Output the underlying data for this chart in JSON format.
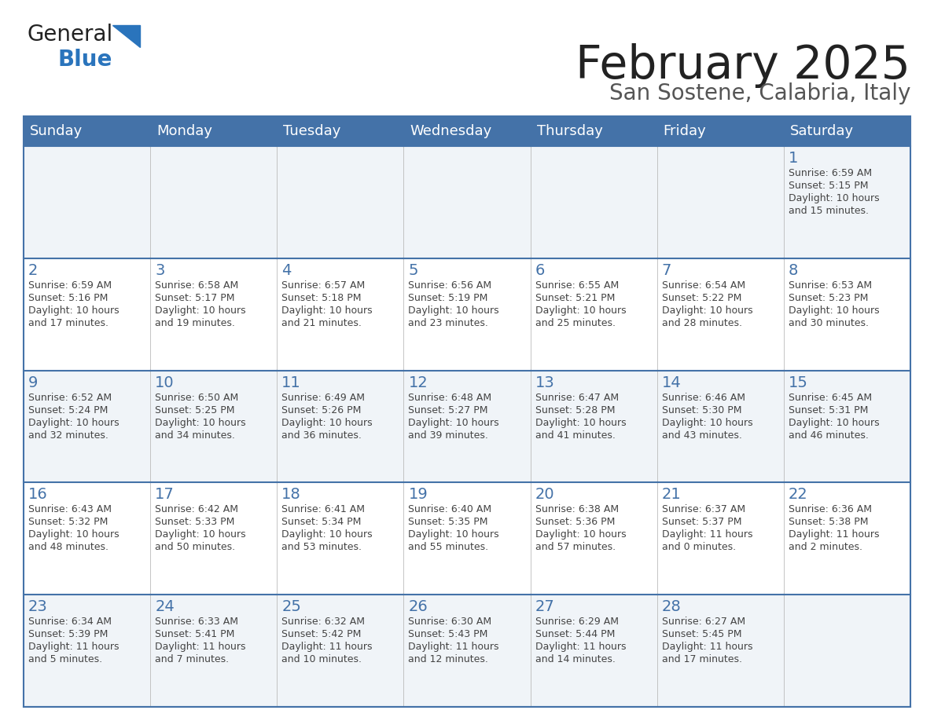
{
  "title": "February 2025",
  "subtitle": "San Sostene, Calabria, Italy",
  "days_of_week": [
    "Sunday",
    "Monday",
    "Tuesday",
    "Wednesday",
    "Thursday",
    "Friday",
    "Saturday"
  ],
  "header_bg_color": "#4472a8",
  "header_text_color": "#ffffff",
  "cell_bg_color": "#ffffff",
  "cell_alt_bg_color": "#f0f4f8",
  "cell_border_color": "#4472a8",
  "day_number_color": "#4472a8",
  "info_text_color": "#444444",
  "title_color": "#222222",
  "subtitle_color": "#555555",
  "logo_general_color": "#222222",
  "logo_blue_color": "#2a74bc",
  "weeks": [
    [
      {
        "day": "",
        "info": ""
      },
      {
        "day": "",
        "info": ""
      },
      {
        "day": "",
        "info": ""
      },
      {
        "day": "",
        "info": ""
      },
      {
        "day": "",
        "info": ""
      },
      {
        "day": "",
        "info": ""
      },
      {
        "day": "1",
        "info": "Sunrise: 6:59 AM\nSunset: 5:15 PM\nDaylight: 10 hours\nand 15 minutes."
      }
    ],
    [
      {
        "day": "2",
        "info": "Sunrise: 6:59 AM\nSunset: 5:16 PM\nDaylight: 10 hours\nand 17 minutes."
      },
      {
        "day": "3",
        "info": "Sunrise: 6:58 AM\nSunset: 5:17 PM\nDaylight: 10 hours\nand 19 minutes."
      },
      {
        "day": "4",
        "info": "Sunrise: 6:57 AM\nSunset: 5:18 PM\nDaylight: 10 hours\nand 21 minutes."
      },
      {
        "day": "5",
        "info": "Sunrise: 6:56 AM\nSunset: 5:19 PM\nDaylight: 10 hours\nand 23 minutes."
      },
      {
        "day": "6",
        "info": "Sunrise: 6:55 AM\nSunset: 5:21 PM\nDaylight: 10 hours\nand 25 minutes."
      },
      {
        "day": "7",
        "info": "Sunrise: 6:54 AM\nSunset: 5:22 PM\nDaylight: 10 hours\nand 28 minutes."
      },
      {
        "day": "8",
        "info": "Sunrise: 6:53 AM\nSunset: 5:23 PM\nDaylight: 10 hours\nand 30 minutes."
      }
    ],
    [
      {
        "day": "9",
        "info": "Sunrise: 6:52 AM\nSunset: 5:24 PM\nDaylight: 10 hours\nand 32 minutes."
      },
      {
        "day": "10",
        "info": "Sunrise: 6:50 AM\nSunset: 5:25 PM\nDaylight: 10 hours\nand 34 minutes."
      },
      {
        "day": "11",
        "info": "Sunrise: 6:49 AM\nSunset: 5:26 PM\nDaylight: 10 hours\nand 36 minutes."
      },
      {
        "day": "12",
        "info": "Sunrise: 6:48 AM\nSunset: 5:27 PM\nDaylight: 10 hours\nand 39 minutes."
      },
      {
        "day": "13",
        "info": "Sunrise: 6:47 AM\nSunset: 5:28 PM\nDaylight: 10 hours\nand 41 minutes."
      },
      {
        "day": "14",
        "info": "Sunrise: 6:46 AM\nSunset: 5:30 PM\nDaylight: 10 hours\nand 43 minutes."
      },
      {
        "day": "15",
        "info": "Sunrise: 6:45 AM\nSunset: 5:31 PM\nDaylight: 10 hours\nand 46 minutes."
      }
    ],
    [
      {
        "day": "16",
        "info": "Sunrise: 6:43 AM\nSunset: 5:32 PM\nDaylight: 10 hours\nand 48 minutes."
      },
      {
        "day": "17",
        "info": "Sunrise: 6:42 AM\nSunset: 5:33 PM\nDaylight: 10 hours\nand 50 minutes."
      },
      {
        "day": "18",
        "info": "Sunrise: 6:41 AM\nSunset: 5:34 PM\nDaylight: 10 hours\nand 53 minutes."
      },
      {
        "day": "19",
        "info": "Sunrise: 6:40 AM\nSunset: 5:35 PM\nDaylight: 10 hours\nand 55 minutes."
      },
      {
        "day": "20",
        "info": "Sunrise: 6:38 AM\nSunset: 5:36 PM\nDaylight: 10 hours\nand 57 minutes."
      },
      {
        "day": "21",
        "info": "Sunrise: 6:37 AM\nSunset: 5:37 PM\nDaylight: 11 hours\nand 0 minutes."
      },
      {
        "day": "22",
        "info": "Sunrise: 6:36 AM\nSunset: 5:38 PM\nDaylight: 11 hours\nand 2 minutes."
      }
    ],
    [
      {
        "day": "23",
        "info": "Sunrise: 6:34 AM\nSunset: 5:39 PM\nDaylight: 11 hours\nand 5 minutes."
      },
      {
        "day": "24",
        "info": "Sunrise: 6:33 AM\nSunset: 5:41 PM\nDaylight: 11 hours\nand 7 minutes."
      },
      {
        "day": "25",
        "info": "Sunrise: 6:32 AM\nSunset: 5:42 PM\nDaylight: 11 hours\nand 10 minutes."
      },
      {
        "day": "26",
        "info": "Sunrise: 6:30 AM\nSunset: 5:43 PM\nDaylight: 11 hours\nand 12 minutes."
      },
      {
        "day": "27",
        "info": "Sunrise: 6:29 AM\nSunset: 5:44 PM\nDaylight: 11 hours\nand 14 minutes."
      },
      {
        "day": "28",
        "info": "Sunrise: 6:27 AM\nSunset: 5:45 PM\nDaylight: 11 hours\nand 17 minutes."
      },
      {
        "day": "",
        "info": ""
      }
    ]
  ]
}
